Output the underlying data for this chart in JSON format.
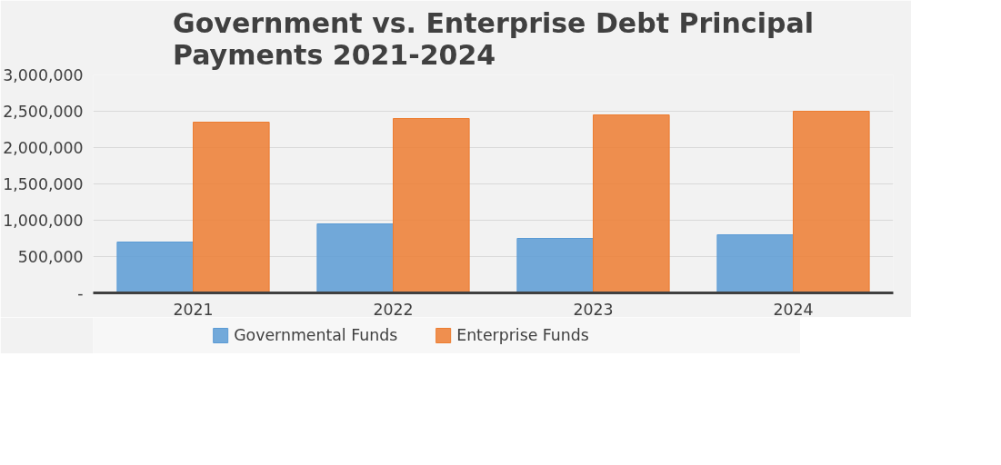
{
  "chart_data": {
    "type": "bar",
    "title": "Government vs. Enterprise Debt Principal Payments 2021-2024",
    "categories": [
      "2021",
      "2022",
      "2023",
      "2024"
    ],
    "series": [
      {
        "name": "Governmental Funds",
        "color": "#5b9bd5",
        "values": [
          700000,
          950000,
          750000,
          800000
        ]
      },
      {
        "name": "Enterprise Funds",
        "color": "#ed7d31",
        "values": [
          2350000,
          2400000,
          2450000,
          2500000
        ]
      }
    ],
    "ylim": [
      0,
      3000000
    ],
    "yticks": [
      {
        "value": 0,
        "label": "-"
      },
      {
        "value": 500000,
        "label": "500,000"
      },
      {
        "value": 1000000,
        "label": "1,000,000"
      },
      {
        "value": 1500000,
        "label": "1,500,000"
      },
      {
        "value": 2000000,
        "label": "2,000,000"
      },
      {
        "value": 2500000,
        "label": "2,500,000"
      },
      {
        "value": 3000000,
        "label": "3,000,000"
      }
    ],
    "grid": "y",
    "legend": "bottom"
  }
}
